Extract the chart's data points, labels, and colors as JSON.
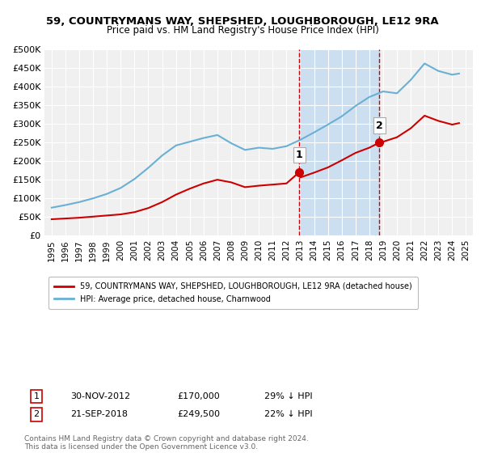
{
  "title": "59, COUNTRYMANS WAY, SHEPSHED, LOUGHBOROUGH, LE12 9RA",
  "subtitle": "Price paid vs. HM Land Registry's House Price Index (HPI)",
  "ylabel_ticks": [
    "£0",
    "£50K",
    "£100K",
    "£150K",
    "£200K",
    "£250K",
    "£300K",
    "£350K",
    "£400K",
    "£450K",
    "£500K"
  ],
  "ytick_values": [
    0,
    50000,
    100000,
    150000,
    200000,
    250000,
    300000,
    350000,
    400000,
    450000,
    500000
  ],
  "ylim": [
    0,
    500000
  ],
  "xlim_start": 1994.5,
  "xlim_end": 2025.5,
  "hpi_color": "#6ab0d4",
  "sold_color": "#cc0000",
  "sale1_year": 2012.92,
  "sale1_price": 170000,
  "sale2_year": 2018.72,
  "sale2_price": 249500,
  "vline_color": "#cc0000",
  "shade_color": "#ccdff0",
  "legend_label_sold": "59, COUNTRYMANS WAY, SHEPSHED, LOUGHBOROUGH, LE12 9RA (detached house)",
  "legend_label_hpi": "HPI: Average price, detached house, Charnwood",
  "table_row1": [
    "1",
    "30-NOV-2012",
    "£170,000",
    "29% ↓ HPI"
  ],
  "table_row2": [
    "2",
    "21-SEP-2018",
    "£249,500",
    "22% ↓ HPI"
  ],
  "footnote": "Contains HM Land Registry data © Crown copyright and database right 2024.\nThis data is licensed under the Open Government Licence v3.0.",
  "background_color": "#ffffff",
  "plot_bg_color": "#f0f0f0",
  "hpi_x": [
    1995,
    1996,
    1997,
    1998,
    1999,
    2000,
    2001,
    2002,
    2003,
    2004,
    2005,
    2006,
    2007,
    2008,
    2009,
    2010,
    2011,
    2012,
    2013,
    2014,
    2015,
    2016,
    2017,
    2018,
    2019,
    2020,
    2021,
    2022,
    2023,
    2024,
    2024.5
  ],
  "hpi_y": [
    75000,
    82000,
    90000,
    100000,
    112000,
    128000,
    152000,
    182000,
    215000,
    242000,
    252000,
    262000,
    270000,
    248000,
    230000,
    236000,
    233000,
    240000,
    257000,
    277000,
    298000,
    320000,
    348000,
    372000,
    387000,
    382000,
    418000,
    462000,
    442000,
    432000,
    435000
  ],
  "sold_x": [
    1995,
    1996,
    1997,
    1998,
    1999,
    2000,
    2001,
    2002,
    2003,
    2004,
    2005,
    2006,
    2007,
    2008,
    2009,
    2010,
    2011,
    2012,
    2012.92,
    2013,
    2014,
    2015,
    2016,
    2017,
    2018,
    2018.72,
    2019,
    2020,
    2021,
    2022,
    2023,
    2024,
    2024.5
  ],
  "sold_y": [
    44000,
    46000,
    48000,
    51000,
    54000,
    57000,
    63000,
    74000,
    90000,
    110000,
    126000,
    140000,
    150000,
    143000,
    130000,
    134000,
    137000,
    140000,
    170000,
    156000,
    169000,
    183000,
    202000,
    222000,
    236000,
    249500,
    252000,
    264000,
    288000,
    322000,
    308000,
    298000,
    302000
  ]
}
